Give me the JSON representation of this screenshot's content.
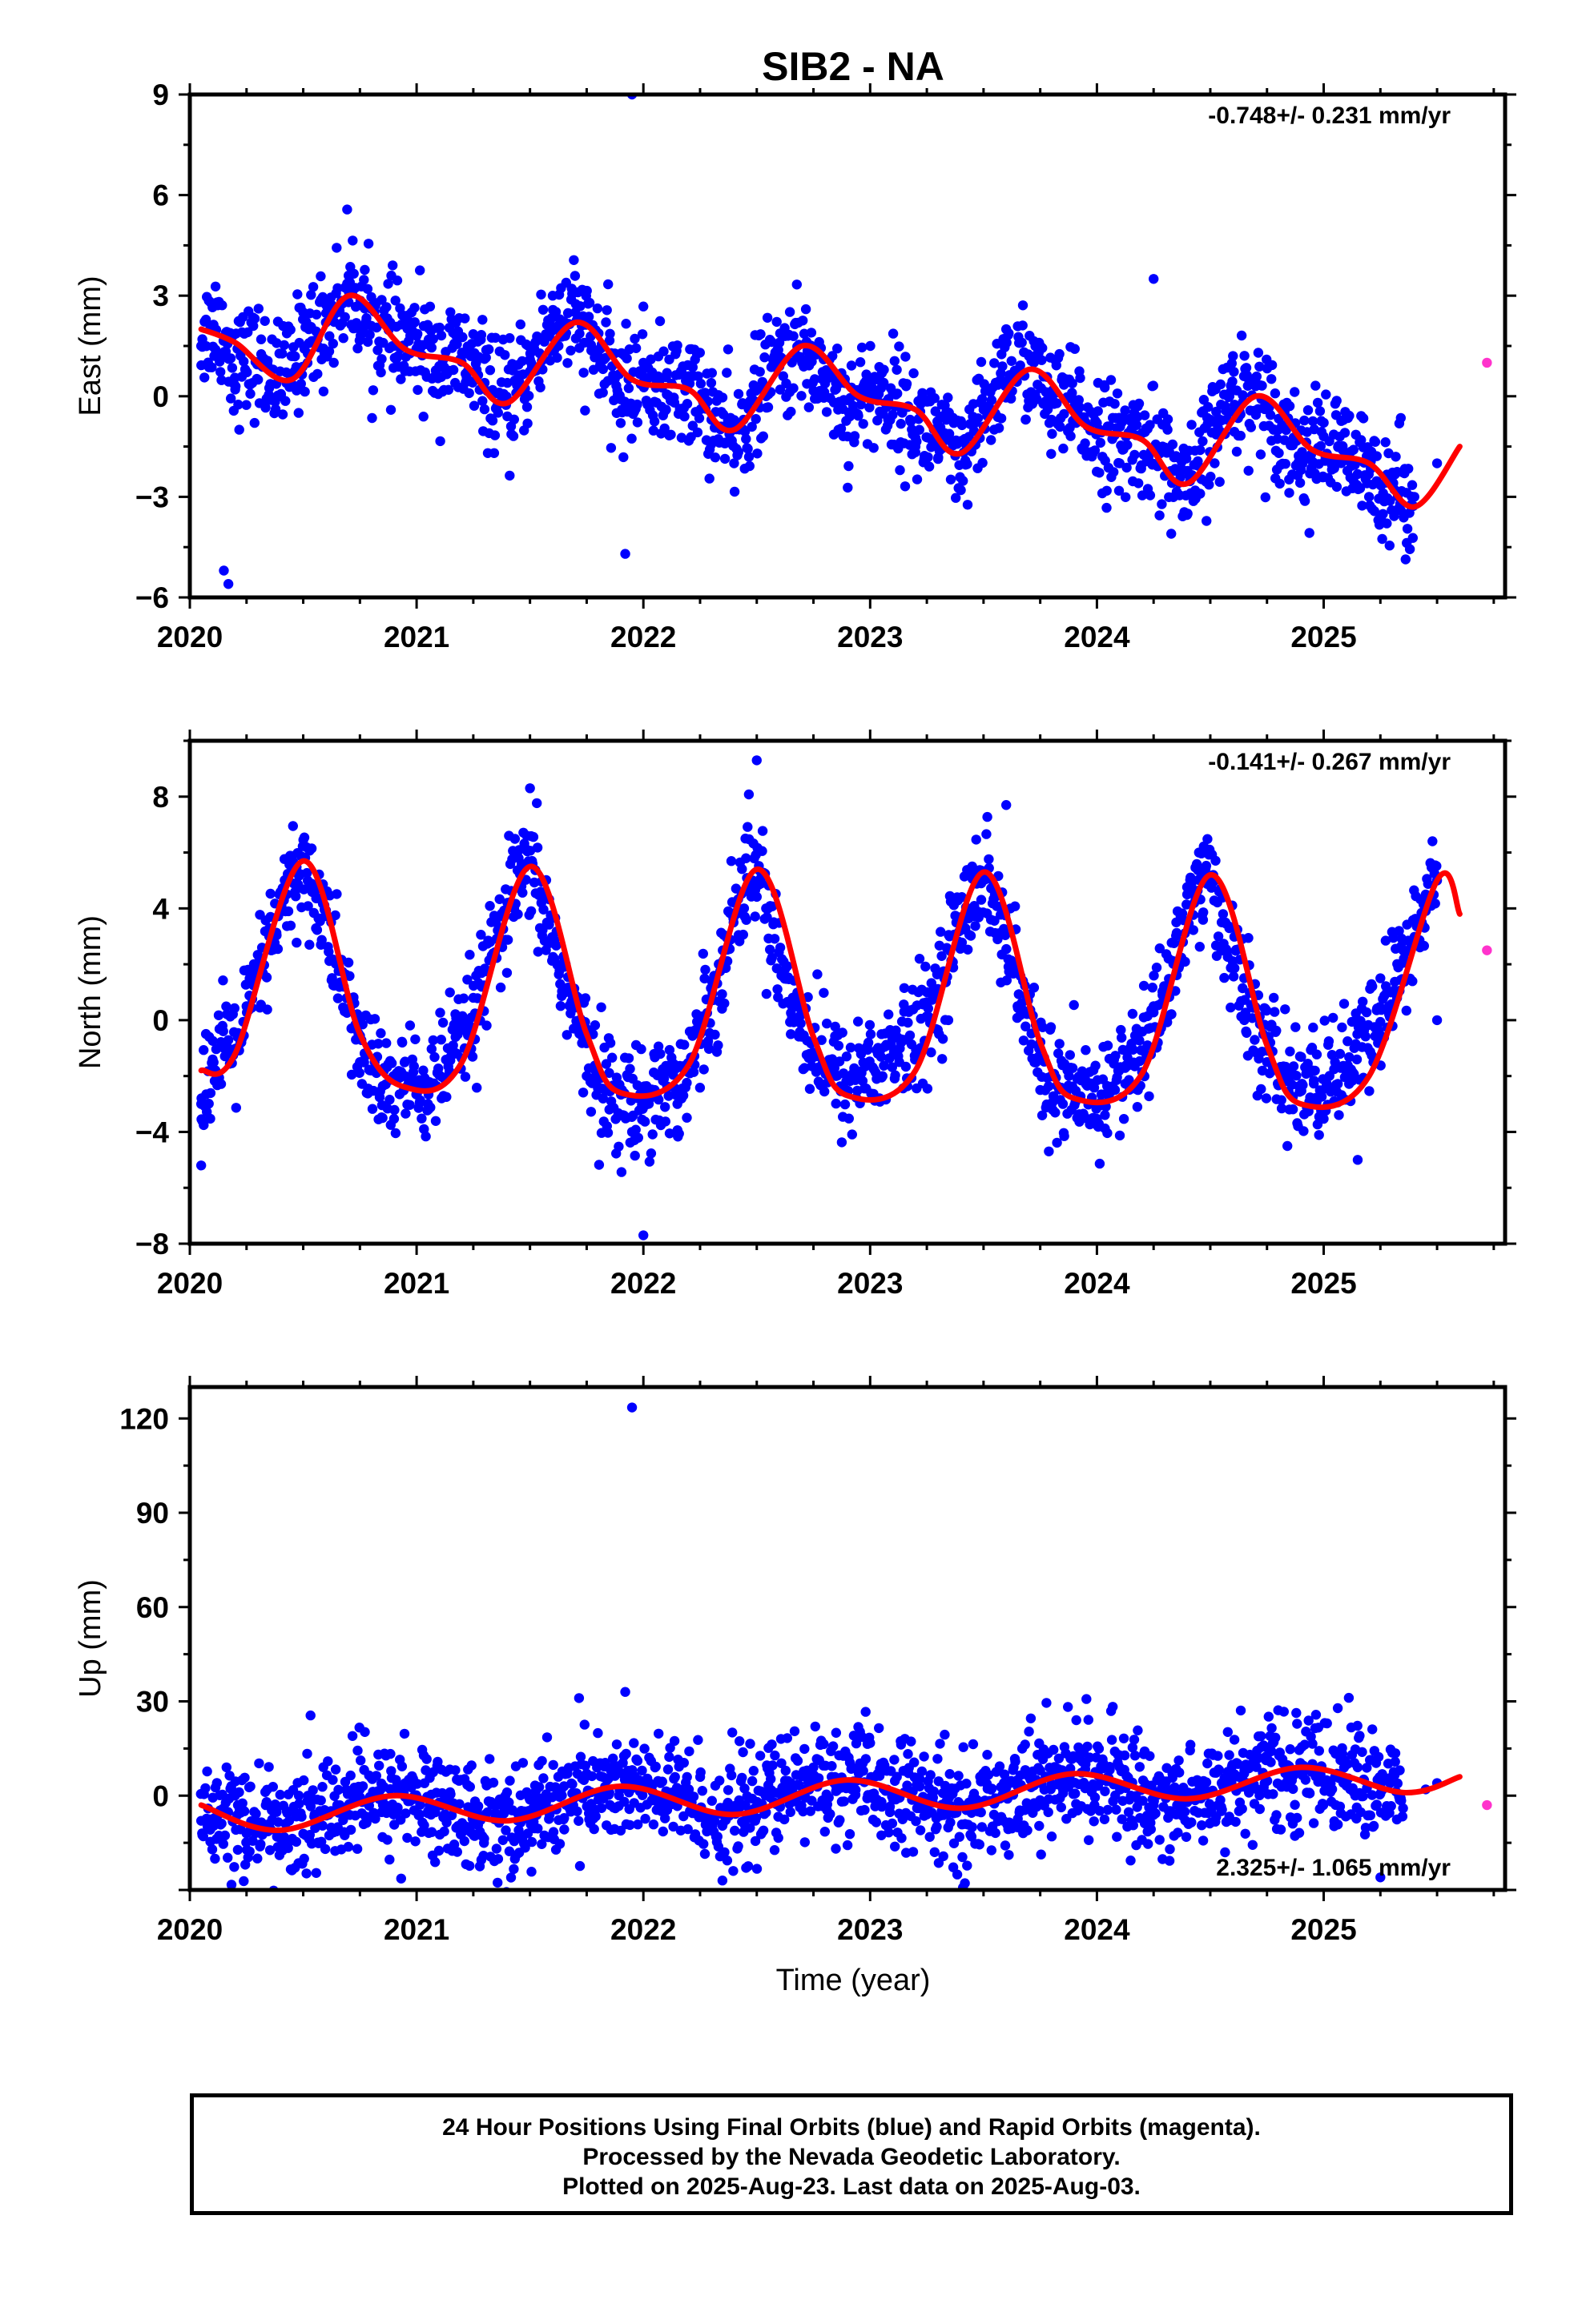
{
  "figure": {
    "title": "SIB2 - NA",
    "xlabel": "Time (year)",
    "footer": [
      "24 Hour Positions Using Final Orbits (blue) and Rapid Orbits (magenta).",
      "Processed by the Nevada Geodetic Laboratory.",
      "Plotted on 2025-Aug-23. Last data on 2025-Aug-03."
    ],
    "colors": {
      "final": "#0000ff",
      "rapid": "#ff33cc",
      "model": "#ff0000",
      "frame": "#000000"
    }
  },
  "chart_data": [
    {
      "type": "scatter",
      "component": "east",
      "ylabel": "East (mm)",
      "rate_label": "-0.748+/- 0.231 mm/yr",
      "rate_position": "top-right",
      "xlim": [
        2020.0,
        2025.8
      ],
      "ylim": [
        -6,
        9
      ],
      "xticks": [
        2020,
        2021,
        2022,
        2023,
        2024,
        2025
      ],
      "yticks": [
        -6,
        -3,
        0,
        3,
        6,
        9
      ],
      "ytick_labels": [
        "−6",
        "−3",
        "0",
        "3",
        "6",
        "9"
      ],
      "model_curve": {
        "name": "model",
        "color": "#ff0000",
        "x": [
          2020.05,
          2020.2,
          2020.45,
          2020.7,
          2020.95,
          2021.2,
          2021.4,
          2021.7,
          2021.95,
          2022.2,
          2022.4,
          2022.7,
          2022.95,
          2023.2,
          2023.4,
          2023.7,
          2023.95,
          2024.2,
          2024.4,
          2024.7,
          2024.95,
          2025.2,
          2025.4,
          2025.6
        ],
        "y": [
          2.0,
          1.6,
          0.5,
          3.0,
          1.4,
          1.0,
          -0.2,
          2.2,
          0.5,
          0.2,
          -1.0,
          1.5,
          0.0,
          -0.4,
          -1.7,
          0.8,
          -0.9,
          -1.3,
          -2.6,
          0.0,
          -1.6,
          -2.0,
          -3.3,
          -1.5
        ]
      },
      "final_points": {
        "name": "final",
        "color": "#0000ff",
        "x": [
          2020.05,
          2020.12,
          2020.2,
          2020.3,
          2020.4,
          2020.5,
          2020.6,
          2020.7,
          2020.8,
          2020.9,
          2021.0,
          2021.1,
          2021.2,
          2021.3,
          2021.4,
          2021.5,
          2021.6,
          2021.7,
          2021.8,
          2021.9,
          2022.0,
          2022.1,
          2022.2,
          2022.3,
          2022.4,
          2022.5,
          2022.6,
          2022.7,
          2022.8,
          2022.9,
          2023.0,
          2023.1,
          2023.2,
          2023.3,
          2023.4,
          2023.5,
          2023.6,
          2023.7,
          2023.8,
          2023.9,
          2024.0,
          2024.1,
          2024.2,
          2024.3,
          2024.4,
          2024.5,
          2024.6,
          2024.7,
          2024.8,
          2024.9,
          2025.0,
          2025.1,
          2025.2,
          2025.3,
          2025.4,
          2025.5
        ],
        "y": [
          1.5,
          2.8,
          0.2,
          1.0,
          0.0,
          2.5,
          2.2,
          3.6,
          2.1,
          1.5,
          1.8,
          0.9,
          1.3,
          0.4,
          -0.6,
          1.1,
          3.0,
          2.5,
          1.2,
          -0.8,
          1.0,
          -0.4,
          0.6,
          -0.7,
          -2.0,
          0.2,
          1.6,
          1.0,
          0.5,
          -1.2,
          0.4,
          0.1,
          -1.5,
          -1.0,
          -2.8,
          -0.4,
          2.0,
          1.2,
          -0.7,
          -0.3,
          -0.8,
          -2.0,
          -1.1,
          -1.6,
          -3.5,
          -0.7,
          1.2,
          0.3,
          -1.0,
          -2.2,
          -1.2,
          -1.8,
          -3.0,
          -2.4,
          -3.0,
          -2.0
        ],
        "outliers_x": [
          2021.95,
          2020.15,
          2020.17,
          2021.92,
          2024.25
        ],
        "outliers_y": [
          9.0,
          -5.2,
          -5.6,
          -4.7,
          3.5
        ]
      },
      "rapid_points": {
        "name": "rapid",
        "color": "#ff33cc",
        "x": [
          2025.72
        ],
        "y": [
          1.0
        ]
      }
    },
    {
      "type": "scatter",
      "component": "north",
      "ylabel": "North (mm)",
      "rate_label": "-0.141+/- 0.267 mm/yr",
      "rate_position": "top-right",
      "xlim": [
        2020.0,
        2025.8
      ],
      "ylim": [
        -8,
        10
      ],
      "xticks": [
        2020,
        2021,
        2022,
        2023,
        2024,
        2025
      ],
      "yticks": [
        -8,
        -4,
        0,
        4,
        8
      ],
      "ytick_labels": [
        "−8",
        "−4",
        "0",
        "4",
        "8"
      ],
      "model_curve": {
        "name": "model",
        "color": "#ff0000",
        "x": [
          2020.05,
          2020.2,
          2020.5,
          2020.75,
          2020.95,
          2021.2,
          2021.5,
          2021.75,
          2021.9,
          2022.2,
          2022.5,
          2022.75,
          2022.9,
          2023.2,
          2023.5,
          2023.75,
          2023.9,
          2024.2,
          2024.5,
          2024.75,
          2024.9,
          2025.2,
          2025.5,
          2025.6
        ],
        "y": [
          -1.8,
          -1.2,
          5.7,
          -0.5,
          -2.4,
          -1.5,
          5.5,
          -0.5,
          -2.6,
          -1.6,
          5.4,
          -0.6,
          -2.7,
          -1.8,
          5.3,
          -0.8,
          -2.8,
          -1.9,
          5.2,
          -0.9,
          -3.0,
          -2.0,
          5.0,
          3.8
        ]
      },
      "final_points": {
        "name": "final",
        "color": "#0000ff",
        "x": [
          2020.05,
          2020.15,
          2020.25,
          2020.35,
          2020.45,
          2020.55,
          2020.65,
          2020.75,
          2020.85,
          2020.95,
          2021.05,
          2021.15,
          2021.25,
          2021.35,
          2021.45,
          2021.55,
          2021.65,
          2021.75,
          2021.85,
          2021.95,
          2022.05,
          2022.15,
          2022.25,
          2022.35,
          2022.45,
          2022.55,
          2022.65,
          2022.75,
          2022.85,
          2022.95,
          2023.05,
          2023.15,
          2023.25,
          2023.35,
          2023.45,
          2023.55,
          2023.65,
          2023.75,
          2023.85,
          2023.95,
          2024.05,
          2024.15,
          2024.25,
          2024.35,
          2024.45,
          2024.55,
          2024.65,
          2024.75,
          2024.85,
          2024.95,
          2025.05,
          2025.15,
          2025.25,
          2025.35,
          2025.45,
          2025.5
        ],
        "y": [
          -3.0,
          -1.0,
          0.5,
          3.0,
          5.5,
          4.8,
          2.0,
          -1.5,
          -3.5,
          -2.0,
          -3.0,
          -1.0,
          0.8,
          3.5,
          5.8,
          4.2,
          1.0,
          -2.0,
          -3.2,
          -4.0,
          -2.5,
          -3.0,
          -0.5,
          2.5,
          6.5,
          4.0,
          -0.5,
          -1.2,
          -2.0,
          -1.0,
          -0.5,
          0.3,
          1.0,
          3.0,
          5.5,
          4.5,
          0.5,
          -2.5,
          -3.0,
          -3.5,
          -2.5,
          -1.0,
          0.5,
          3.5,
          6.0,
          3.5,
          0.0,
          -1.5,
          -2.0,
          -1.8,
          -1.5,
          0.0,
          1.5,
          2.5,
          4.5,
          5.0
        ],
        "outliers_x": [
          2022.5,
          2021.5,
          2022.0,
          2020.05,
          2023.6,
          2025.15,
          2025.5
        ],
        "outliers_y": [
          9.3,
          8.3,
          -7.7,
          -5.2,
          7.7,
          -5.0,
          0.0
        ]
      },
      "rapid_points": {
        "name": "rapid",
        "color": "#ff33cc",
        "x": [
          2025.72
        ],
        "y": [
          2.5
        ]
      }
    },
    {
      "type": "scatter",
      "component": "up",
      "ylabel": "Up (mm)",
      "rate_label": "2.325+/- 1.065 mm/yr",
      "rate_position": "bottom-right",
      "xlim": [
        2020.0,
        2025.8
      ],
      "ylim": [
        -30,
        130
      ],
      "xticks": [
        2020,
        2021,
        2022,
        2023,
        2024,
        2025
      ],
      "yticks": [
        0,
        30,
        60,
        90,
        120
      ],
      "ytick_labels": [
        "0",
        "30",
        "60",
        "90",
        "120"
      ],
      "model_curve": {
        "name": "model",
        "color": "#ff0000",
        "x": [
          2020.05,
          2020.4,
          2020.9,
          2021.4,
          2021.9,
          2022.4,
          2022.9,
          2023.4,
          2023.9,
          2024.4,
          2024.9,
          2025.35,
          2025.6
        ],
        "y": [
          -3.0,
          -11.0,
          0.0,
          -8.0,
          3.0,
          -6.0,
          5.0,
          -4.0,
          7.0,
          -1.0,
          9.0,
          1.0,
          6.0
        ]
      },
      "final_points": {
        "name": "final",
        "color": "#0000ff",
        "x": [
          2020.05,
          2020.15,
          2020.25,
          2020.35,
          2020.45,
          2020.55,
          2020.65,
          2020.75,
          2020.85,
          2020.95,
          2021.05,
          2021.15,
          2021.25,
          2021.35,
          2021.45,
          2021.55,
          2021.65,
          2021.75,
          2021.85,
          2021.95,
          2022.05,
          2022.15,
          2022.25,
          2022.35,
          2022.45,
          2022.55,
          2022.65,
          2022.75,
          2022.85,
          2022.95,
          2023.05,
          2023.15,
          2023.25,
          2023.35,
          2023.45,
          2023.55,
          2023.65,
          2023.75,
          2023.85,
          2023.95,
          2024.05,
          2024.15,
          2024.25,
          2024.35,
          2024.45,
          2024.55,
          2024.65,
          2024.75,
          2024.85,
          2024.95,
          2025.05,
          2025.15,
          2025.25,
          2025.35,
          2025.45,
          2025.5
        ],
        "y": [
          -8,
          -4,
          -12,
          -9,
          -14,
          -6,
          -3,
          2,
          -1,
          4,
          -5,
          -2,
          -9,
          -6,
          -11,
          -4,
          3,
          7,
          1,
          6,
          -1,
          2,
          -5,
          -9,
          -3,
          1,
          4,
          9,
          3,
          7,
          -2,
          1,
          -6,
          -3,
          -10,
          -2,
          3,
          8,
          2,
          10,
          5,
          0,
          -3,
          -6,
          1,
          4,
          8,
          12,
          5,
          10,
          6,
          9,
          3,
          -4,
          2,
          4
        ],
        "outliers_x": [
          2021.95,
          2021.92,
          2022.85,
          2025.25
        ],
        "outliers_y": [
          123.5,
          33.0,
          20.0,
          -26.0
        ]
      },
      "rapid_points": {
        "name": "rapid",
        "color": "#ff33cc",
        "x": [
          2025.72
        ],
        "y": [
          -3.0
        ]
      }
    }
  ]
}
